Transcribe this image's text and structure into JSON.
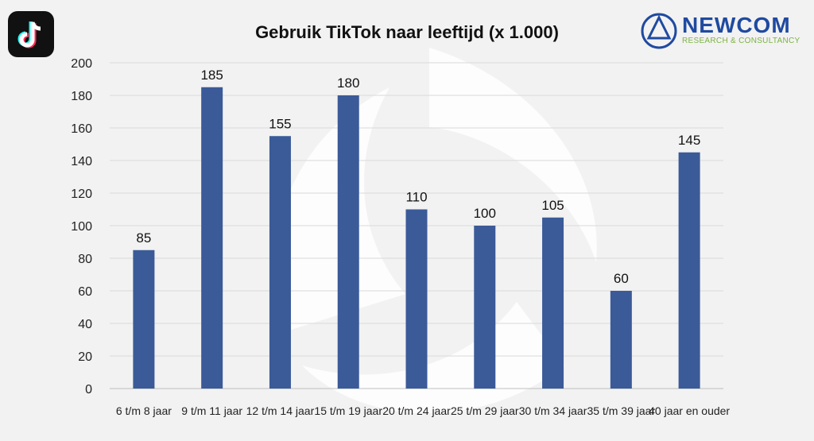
{
  "header": {
    "logo_left": "tiktok-logo",
    "brand_name": "NEWCOM",
    "brand_sub": "RESEARCH & CONSULTANCY",
    "brand_color": "#1f4aa0",
    "brand_sub_color": "#7cb342"
  },
  "chart_data": {
    "type": "bar",
    "title": "Gebruik TikTok naar leeftijd (x 1.000)",
    "categories": [
      "6 t/m 8 jaar",
      "9 t/m 11 jaar",
      "12 t/m 14 jaar",
      "15 t/m 19 jaar",
      "20 t/m 24 jaar",
      "25 t/m 29 jaar",
      "30 t/m 34 jaar",
      "35 t/m 39 jaar",
      "40 jaar en ouder"
    ],
    "values": [
      85,
      185,
      155,
      180,
      110,
      100,
      105,
      60,
      145
    ],
    "data_labels": [
      "85",
      "185",
      "155",
      "180",
      "110",
      "100",
      "105",
      "60",
      "145"
    ],
    "xlabel": "",
    "ylabel": "",
    "ylim": [
      0,
      200
    ],
    "yticks": [
      0,
      20,
      40,
      60,
      80,
      100,
      120,
      140,
      160,
      180,
      200
    ],
    "grid": true,
    "legend": "none",
    "bar_color": "#3b5a98"
  }
}
